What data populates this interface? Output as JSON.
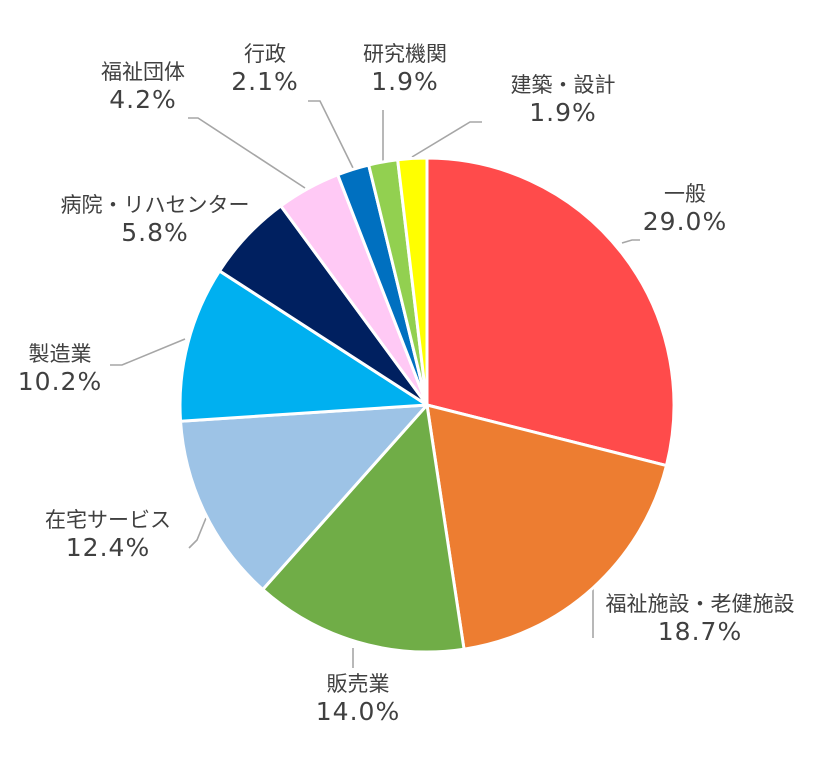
{
  "chart_data": {
    "type": "pie",
    "title": "",
    "start_angle_deg": 0,
    "direction": "clockwise",
    "categories": [
      "一般",
      "福祉施設・老健施設",
      "販売業",
      "在宅サービス",
      "製造業",
      "病院・リハセンター",
      "福祉団体",
      "行政",
      "研究機関",
      "建築・設計"
    ],
    "values": [
      29.0,
      18.7,
      14.0,
      12.4,
      10.2,
      5.8,
      4.2,
      2.1,
      1.9,
      1.9
    ],
    "value_labels": [
      "29.0%",
      "18.7%",
      "14.0%",
      "12.4%",
      "10.2%",
      "5.8%",
      "4.2%",
      "2.1%",
      "1.9%",
      "1.9%"
    ],
    "colors": [
      "#FF4B4B",
      "#ED7D31",
      "#70AD47",
      "#9DC3E6",
      "#00B0F0",
      "#002060",
      "#FFC9F5",
      "#0070C0",
      "#92D050",
      "#FFFF00"
    ],
    "legend": "none (data labels with leader lines)",
    "units": "%"
  },
  "labels": [
    {
      "name": "一般",
      "pct": "29.0%"
    },
    {
      "name": "福祉施設・老健施設",
      "pct": "18.7%"
    },
    {
      "name": "販売業",
      "pct": "14.0%"
    },
    {
      "name": "在宅サービス",
      "pct": "12.4%"
    },
    {
      "name": "製造業",
      "pct": "10.2%"
    },
    {
      "name": "病院・リハセンター",
      "pct": "5.8%"
    },
    {
      "name": "福祉団体",
      "pct": "4.2%"
    },
    {
      "name": "行政",
      "pct": "2.1%"
    },
    {
      "name": "研究機関",
      "pct": "1.9%"
    },
    {
      "name": "建築・設計",
      "pct": "1.9%"
    }
  ]
}
